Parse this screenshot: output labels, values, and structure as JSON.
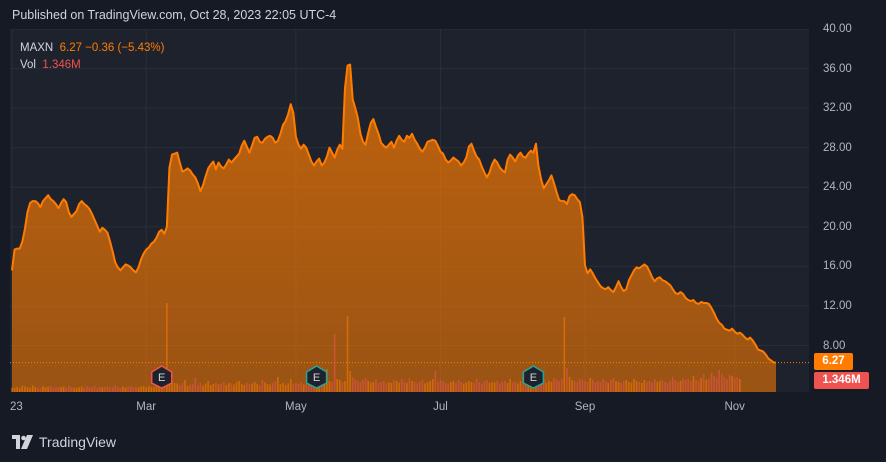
{
  "header": {
    "published": "Published on TradingView.com, Oct 28, 2023 22:05 UTC-4"
  },
  "legend": {
    "symbol": "MAXN",
    "price_line": "6.27 −0.36 (−5.43%)",
    "vol_label": "Vol",
    "vol_value": "1.346M"
  },
  "tags": {
    "price": "6.27",
    "volume": "1.346M"
  },
  "brand": {
    "name": "TradingView"
  },
  "colors": {
    "line": "#ff7c00",
    "volume_up": "#ff7c00",
    "volume_down": "#ef5350",
    "background": "#1e222d"
  },
  "earnings": [
    {
      "label": "E",
      "date_index": 58,
      "color": "#ef5350"
    },
    {
      "label": "E",
      "date_index": 118,
      "color": "#26a69a"
    },
    {
      "label": "E",
      "date_index": 202,
      "color": "#26a69a"
    }
  ],
  "chart_data": {
    "type": "area",
    "y_ticks": [
      "40.00",
      "36.00",
      "32.00",
      "28.00",
      "24.00",
      "20.00",
      "16.00",
      "12.00",
      "8.00"
    ],
    "y_tick_values": [
      40,
      36,
      32,
      28,
      24,
      20,
      16,
      12,
      8
    ],
    "ylim": [
      3.3,
      40
    ],
    "x_ticks": [
      "23",
      "Mar",
      "May",
      "Jul",
      "Sep",
      "Nov"
    ],
    "x_tick_index": [
      0,
      52,
      110,
      166,
      222,
      280
    ],
    "last_price": 6.27,
    "series": [
      {
        "values": [
          15.6,
          17.7,
          17.8,
          17.8,
          18.5,
          19.8,
          21.5,
          22.4,
          22.6,
          22.6,
          22.4,
          22.0,
          22.6,
          22.9,
          23.2,
          22.8,
          22.6,
          22.3,
          21.9,
          22.4,
          22.8,
          22.5,
          21.5,
          21.0,
          21.3,
          21.6,
          22.3,
          22.6,
          22.3,
          22.1,
          21.8,
          21.3,
          20.7,
          20.1,
          19.5,
          19.9,
          19.7,
          19.4,
          18.5,
          17.5,
          16.4,
          15.9,
          15.6,
          15.9,
          16.2,
          16.1,
          15.9,
          15.6,
          15.4,
          15.9,
          16.7,
          17.3,
          17.7,
          17.9,
          18.3,
          18.5,
          18.9,
          19.5,
          19.7,
          19.3,
          20.0,
          26.0,
          27.3,
          27.4,
          27.5,
          26.5,
          25.6,
          25.7,
          25.9,
          25.7,
          25.3,
          25.0,
          24.4,
          23.6,
          24.2,
          25.1,
          25.9,
          26.3,
          26.6,
          25.8,
          26.5,
          26.1,
          25.9,
          26.3,
          26.8,
          26.5,
          26.8,
          27.1,
          27.4,
          28.2,
          28.7,
          28.1,
          27.5,
          28.2,
          29.0,
          29.1,
          28.6,
          28.5,
          28.9,
          29.1,
          29.2,
          29.0,
          28.5,
          28.7,
          29.4,
          30.3,
          30.7,
          31.4,
          32.4,
          31.5,
          29.1,
          28.3,
          27.9,
          28.3,
          28.0,
          27.3,
          26.6,
          26.2,
          26.6,
          26.9,
          26.2,
          26.5,
          27.1,
          28.0,
          27.5,
          27.0,
          27.8,
          28.3,
          27.9,
          34.0,
          36.3,
          36.4,
          32.9,
          32.0,
          31.0,
          29.4,
          28.6,
          28.3,
          29.5,
          30.5,
          30.9,
          30.1,
          29.4,
          28.5,
          28.2,
          28.0,
          28.3,
          28.6,
          28.0,
          28.7,
          29.2,
          28.8,
          28.6,
          29.2,
          29.0,
          29.4,
          28.8,
          28.4,
          27.9,
          27.6,
          28.0,
          28.6,
          28.7,
          28.8,
          28.7,
          28.2,
          27.6,
          27.4,
          26.8,
          26.5,
          26.7,
          27.0,
          26.8,
          26.6,
          26.2,
          26.5,
          27.0,
          28.1,
          28.4,
          27.7,
          27.1,
          26.8,
          26.1,
          25.5,
          25.0,
          25.5,
          26.3,
          26.8,
          26.5,
          26.0,
          25.7,
          25.5,
          26.8,
          27.3,
          27.0,
          26.6,
          27.2,
          27.5,
          27.1,
          27.0,
          27.4,
          27.7,
          27.5,
          28.4,
          26.1,
          24.8,
          23.9,
          24.3,
          24.7,
          25.2,
          24.4,
          23.5,
          22.7,
          22.6,
          22.6,
          22.3,
          23.1,
          23.3,
          23.2,
          22.8,
          22.5,
          21.0,
          16.1,
          15.3,
          15.7,
          15.3,
          14.8,
          14.4,
          14.0,
          13.8,
          13.7,
          13.9,
          13.6,
          13.4,
          13.9,
          14.5,
          13.9,
          13.5,
          13.7,
          14.6,
          15.1,
          15.6,
          15.9,
          15.8,
          16.0,
          16.2,
          16.0,
          15.5,
          14.9,
          14.5,
          14.8,
          14.9,
          14.6,
          14.5,
          14.3,
          14.1,
          13.7,
          13.3,
          13.2,
          13.4,
          13.2,
          12.8,
          12.6,
          12.5,
          12.6,
          12.3,
          12.2,
          12.4,
          12.3,
          12.3,
          12.2,
          11.8,
          11.3,
          10.7,
          10.3,
          10.1,
          9.7,
          9.6,
          9.5,
          9.7,
          9.4,
          9.2,
          9.3,
          9.1,
          8.8,
          8.6,
          8.8,
          8.5,
          8.1,
          7.6,
          7.5,
          7.4,
          7.1,
          6.7,
          6.5,
          6.3,
          6.27
        ]
      }
    ],
    "volume": {
      "max_ref": 10.0,
      "values": [
        0.45,
        0.4,
        0.52,
        0.38,
        0.61,
        0.55,
        0.48,
        0.42,
        0.66,
        0.5,
        0.44,
        0.39,
        0.58,
        0.47,
        0.53,
        0.6,
        0.41,
        0.46,
        0.52,
        0.49,
        0.57,
        0.43,
        0.62,
        0.51,
        0.45,
        0.4,
        0.48,
        0.55,
        0.44,
        0.59,
        0.5,
        0.46,
        0.63,
        0.42,
        0.54,
        0.47,
        0.51,
        0.58,
        0.44,
        0.49,
        0.66,
        0.53,
        0.41,
        0.57,
        0.48,
        0.52,
        0.6,
        0.45,
        0.5,
        0.43,
        0.55,
        0.62,
        0.47,
        0.58,
        0.49,
        0.53,
        0.7,
        0.81,
        0.75,
        0.95,
        8.9,
        1.6,
        1.1,
        0.9,
        0.85,
        0.7,
        0.9,
        1.2,
        0.6,
        0.75,
        0.8,
        1.4,
        0.7,
        0.9,
        0.65,
        0.85,
        1.1,
        0.7,
        0.8,
        0.9,
        0.75,
        0.8,
        1.0,
        0.7,
        0.9,
        0.85,
        0.75,
        0.95,
        1.1,
        0.8,
        0.7,
        0.9,
        0.75,
        0.85,
        1.0,
        0.8,
        0.7,
        1.2,
        0.95,
        0.8,
        0.75,
        0.9,
        1.1,
        1.5,
        0.8,
        0.9,
        0.7,
        0.85,
        1.3,
        0.75,
        0.9,
        0.8,
        1.0,
        0.75,
        0.85,
        0.9,
        1.2,
        0.8,
        1.0,
        0.95,
        1.6,
        1.8,
        2.3,
        1.1,
        1.0,
        5.8,
        1.3,
        1.2,
        1.0,
        1.1,
        7.6,
        2.1,
        1.5,
        1.3,
        1.1,
        1.0,
        1.2,
        1.4,
        1.1,
        0.95,
        1.0,
        1.3,
        0.9,
        1.0,
        1.1,
        0.85,
        1.0,
        0.9,
        1.2,
        1.1,
        0.95,
        1.3,
        1.0,
        0.9,
        1.4,
        1.1,
        1.0,
        0.9,
        1.0,
        1.2,
        0.85,
        1.0,
        1.1,
        1.3,
        2.1,
        1.0,
        1.2,
        1.1,
        0.9,
        0.85,
        1.0,
        1.1,
        0.9,
        1.2,
        1.0,
        0.85,
        0.95,
        1.1,
        1.0,
        0.9,
        1.3,
        1.0,
        0.85,
        1.1,
        1.2,
        0.9,
        1.0,
        0.95,
        1.1,
        0.85,
        1.0,
        1.1,
        0.9,
        1.3,
        0.95,
        1.0,
        0.85,
        1.1,
        1.5,
        2.0,
        1.2,
        1.4,
        1.1,
        0.9,
        1.0,
        1.2,
        1.3,
        0.9,
        1.1,
        1.0,
        1.4,
        1.2,
        1.1,
        1.3,
        7.5,
        2.4,
        1.5,
        1.2,
        1.1,
        1.0,
        1.3,
        1.2,
        1.1,
        1.0,
        1.4,
        1.2,
        0.95,
        1.1,
        1.0,
        1.3,
        1.1,
        0.9,
        1.2,
        1.4,
        1.1,
        1.0,
        0.9,
        1.1,
        1.2,
        1.0,
        0.95,
        1.3,
        1.1,
        1.0,
        0.9,
        1.2,
        1.0,
        1.1,
        0.95,
        1.3,
        1.0,
        1.1,
        1.2,
        1.0,
        0.9,
        1.1,
        1.5,
        1.2,
        1.0,
        1.1,
        1.4,
        1.2,
        1.3,
        1.1,
        1.6,
        1.2,
        1.1,
        1.4,
        1.8,
        1.2,
        1.3,
        1.9,
        1.6,
        1.4,
        2.2,
        1.8,
        1.5,
        1.3,
        1.7,
        1.6,
        1.4,
        1.5,
        1.3
      ]
    }
  }
}
